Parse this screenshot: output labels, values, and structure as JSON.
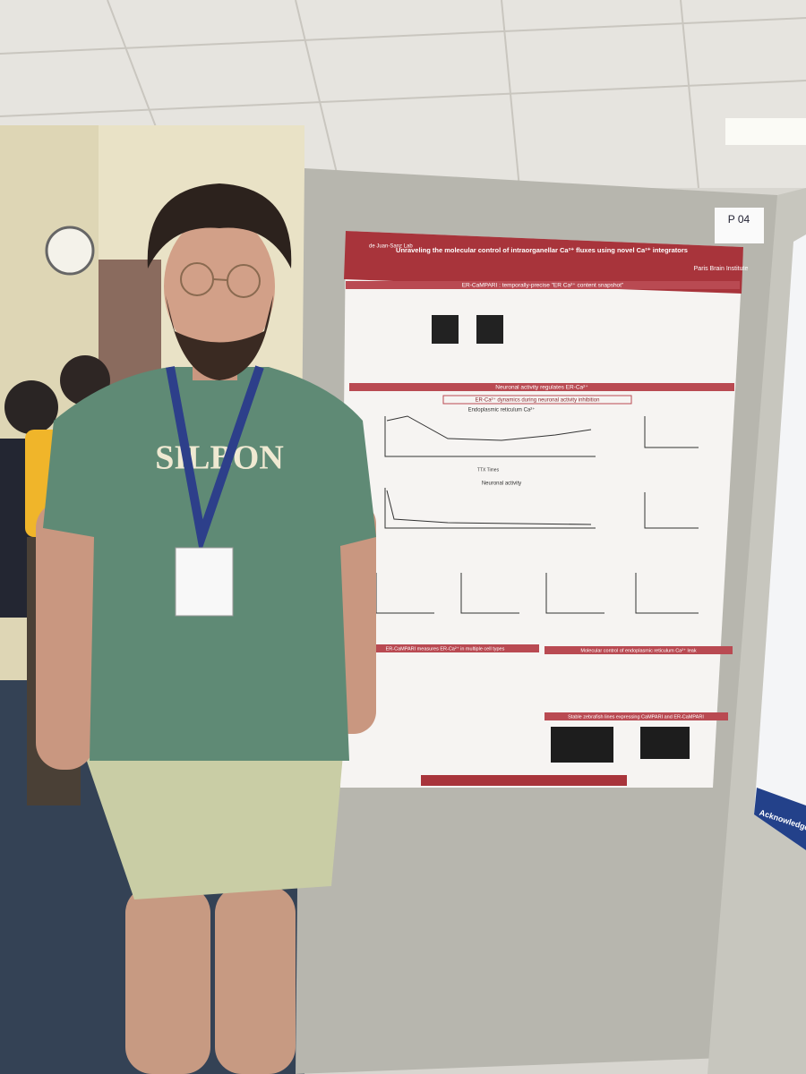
{
  "board_label": "P 04",
  "poster": {
    "title": "Unraveling the molecular control of intraorganellar Ca²⁺ fluxes using novel Ca²⁺ integrators",
    "lab": "de Juan-Sanz Lab",
    "institute": "Paris Brain Institute",
    "sections": [
      "ER-CaMPARI : temporally-precise \"ER Ca²⁺ content snapshot\"",
      "Neuronal activity regulates ER-Ca²⁺",
      "ER-Ca²⁺ dynamics during neuronal activity inhibition",
      "ER-CaMPARI measures ER-Ca²⁺ in multiple cell types",
      "Molecular control of endoplasmic reticulum Ca²⁺ leak",
      "Stable zebrafish lines expressing CaMPARI and ER-CaMPARI"
    ],
    "panels": [
      "Endoplasmic reticulum Ca²⁺",
      "Neuronal activity"
    ],
    "x_axis": "TTX Times"
  },
  "shirt_text": "SILBON",
  "side_poster": "Acknowledgements"
}
